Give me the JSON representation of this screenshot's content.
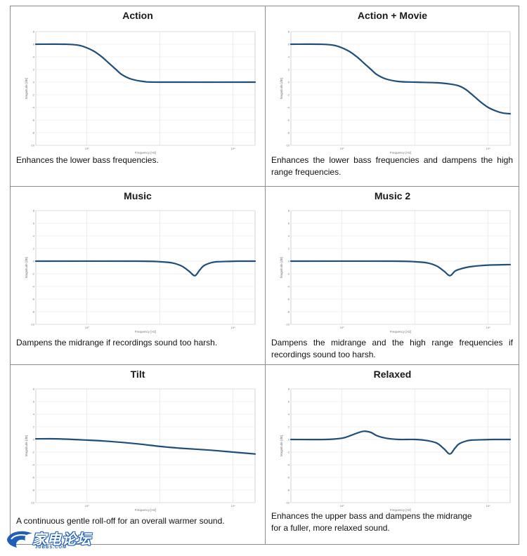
{
  "watermark": {
    "text_cn": "家电论坛",
    "text_en": "JDBBS.COM"
  },
  "common": {
    "xlabel": "Frequency [Hz]",
    "ylabel": "Magnitude [dB]"
  },
  "panels": [
    {
      "title": "Action",
      "description": "Enhances the lower bass frequencies.",
      "chart_data": {
        "type": "line",
        "xlabel": "Frequency [Hz]",
        "ylabel": "Magnitude [dB]",
        "xscale": "log",
        "xlim": [
          20,
          20000
        ],
        "ylim": [
          -10,
          8
        ],
        "series": [
          {
            "x": [
              20,
              50,
              80,
              120,
              160,
              200,
              250,
              300,
              400,
              600,
              1000,
              20000
            ],
            "y": [
              6,
              6,
              5.8,
              5,
              4,
              3,
              2,
              1.2,
              0.5,
              0.1,
              0,
              0
            ]
          }
        ]
      }
    },
    {
      "title": "Action + Movie",
      "description": "Enhances the lower bass frequencies and dampens the high range frequencies.",
      "chart_data": {
        "type": "line",
        "xlabel": "Frequency [Hz]",
        "ylabel": "Magnitude [dB]",
        "xscale": "log",
        "xlim": [
          20,
          20000
        ],
        "ylim": [
          -10,
          8
        ],
        "series": [
          {
            "x": [
              20,
              50,
              80,
              120,
              160,
              200,
              250,
              300,
              400,
              600,
              1000,
              2000,
              3000,
              4000,
              5000,
              6500,
              8000,
              10000,
              13000,
              16000,
              20000
            ],
            "y": [
              6,
              6,
              5.8,
              5,
              4,
              3,
              2,
              1.2,
              0.5,
              0.1,
              0,
              -0.1,
              -0.3,
              -0.6,
              -1.2,
              -2.3,
              -3.2,
              -4,
              -4.6,
              -4.9,
              -5
            ]
          }
        ]
      }
    },
    {
      "title": "Music",
      "description": "Dampens the midrange if recordings sound too harsh.",
      "chart_data": {
        "type": "line",
        "xlabel": "Frequency [Hz]",
        "ylabel": "Magnitude [dB]",
        "xscale": "log",
        "xlim": [
          20,
          20000
        ],
        "ylim": [
          -10,
          8
        ],
        "series": [
          {
            "x": [
              20,
              500,
              1000,
              1500,
              2000,
              2500,
              3000,
              3500,
              4000,
              5000,
              6000,
              8000,
              12000,
              20000
            ],
            "y": [
              0,
              0,
              -0.1,
              -0.3,
              -0.8,
              -1.6,
              -2.3,
              -1.4,
              -0.7,
              -0.25,
              -0.1,
              -0.05,
              0,
              0
            ]
          }
        ]
      }
    },
    {
      "title": "Music 2",
      "description": "Dampens the midrange and the high range frequencies if recordings sound too harsh.",
      "chart_data": {
        "type": "line",
        "xlabel": "Frequency [Hz]",
        "ylabel": "Magnitude [dB]",
        "xscale": "log",
        "xlim": [
          20,
          20000
        ],
        "ylim": [
          -10,
          8
        ],
        "series": [
          {
            "x": [
              20,
              500,
              1000,
              1500,
              2000,
              2500,
              3000,
              3500,
              4000,
              5000,
              6000,
              8000,
              12000,
              20000
            ],
            "y": [
              0,
              0,
              -0.1,
              -0.3,
              -0.8,
              -1.6,
              -2.3,
              -1.6,
              -1.3,
              -1.0,
              -0.85,
              -0.7,
              -0.6,
              -0.55
            ]
          }
        ]
      }
    },
    {
      "title": "Tilt",
      "description": "A continuous gentle roll-off for an overall warmer sound.",
      "chart_data": {
        "type": "line",
        "xlabel": "Frequency [Hz]",
        "ylabel": "Magnitude [dB]",
        "xscale": "log",
        "xlim": [
          20,
          20000
        ],
        "ylim": [
          -10,
          8
        ],
        "series": [
          {
            "x": [
              20,
              40,
              100,
              200,
              500,
              1000,
              2000,
              5000,
              10000,
              20000
            ],
            "y": [
              0.1,
              0.1,
              -0.1,
              -0.3,
              -0.7,
              -1.1,
              -1.4,
              -1.7,
              -2.0,
              -2.3
            ]
          }
        ]
      }
    },
    {
      "title": "Relaxed",
      "description": "Enhances the upper bass and dampens the midrange for a fuller, more relaxed sound.",
      "chart_data": {
        "type": "line",
        "xlabel": "Frequency [Hz]",
        "ylabel": "Magnitude [dB]",
        "xscale": "log",
        "xlim": [
          20,
          20000
        ],
        "ylim": [
          -10,
          8
        ],
        "series": [
          {
            "x": [
              20,
              60,
              100,
              130,
              160,
              200,
              250,
              300,
              400,
              600,
              1000,
              1500,
              2000,
              2500,
              3000,
              3500,
              4000,
              5000,
              6000,
              8000,
              12000,
              20000
            ],
            "y": [
              0,
              0,
              0.2,
              0.6,
              1.0,
              1.3,
              1.1,
              0.6,
              0.2,
              0,
              0,
              -0.2,
              -0.6,
              -1.5,
              -2.3,
              -1.4,
              -0.7,
              -0.25,
              -0.1,
              -0.05,
              0,
              0
            ]
          }
        ]
      }
    }
  ]
}
